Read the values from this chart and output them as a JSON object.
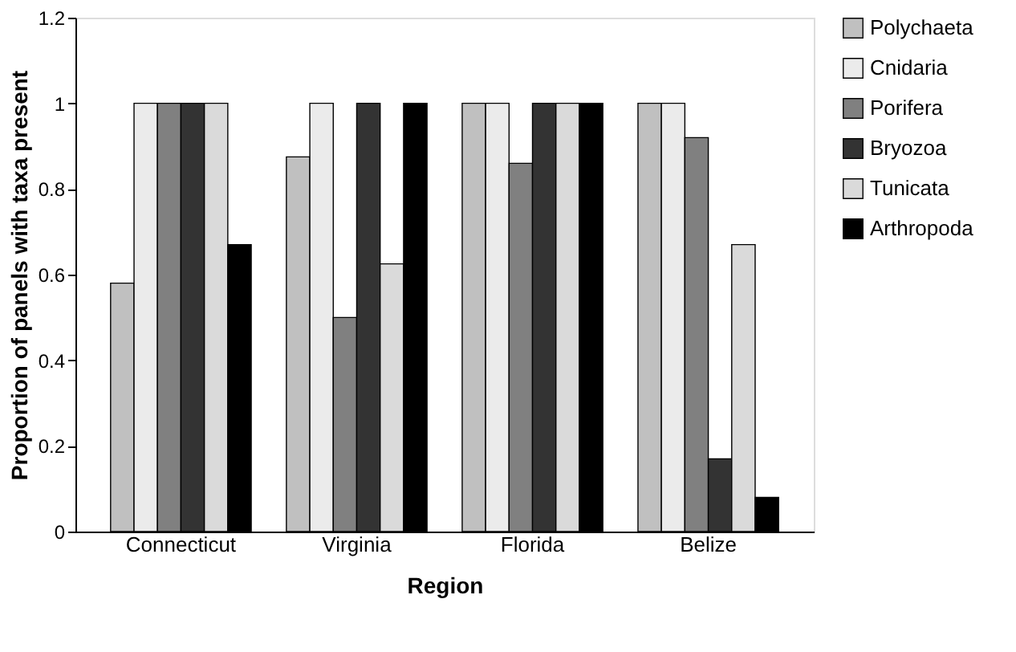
{
  "chart_data": {
    "type": "bar",
    "xlabel": "Region",
    "ylabel": "Proportion of panels with taxa present",
    "categories": [
      "Connecticut",
      "Virginia",
      "Florida",
      "Belize"
    ],
    "series": [
      {
        "name": "Polychaeta",
        "color": "#c0c0c0",
        "values": [
          0.58,
          0.875,
          1,
          1
        ]
      },
      {
        "name": "Cnidaria",
        "color": "#ebebeb",
        "values": [
          1,
          1,
          1,
          1
        ]
      },
      {
        "name": "Porifera",
        "color": "#808080",
        "values": [
          1,
          0.5,
          0.86,
          0.92
        ]
      },
      {
        "name": "Bryozoa",
        "color": "#333333",
        "values": [
          1,
          1,
          1,
          0.17
        ]
      },
      {
        "name": "Tunicata",
        "color": "#dadada",
        "values": [
          1,
          0.625,
          1,
          0.67
        ]
      },
      {
        "name": "Arthropoda",
        "color": "#000000",
        "values": [
          0.67,
          1,
          1,
          0.08
        ]
      }
    ],
    "ylim": [
      0,
      1.2
    ],
    "yticks": [
      0,
      0.2,
      0.4,
      0.6,
      0.8,
      1,
      1.2
    ],
    "grid": false,
    "legend": "right"
  }
}
